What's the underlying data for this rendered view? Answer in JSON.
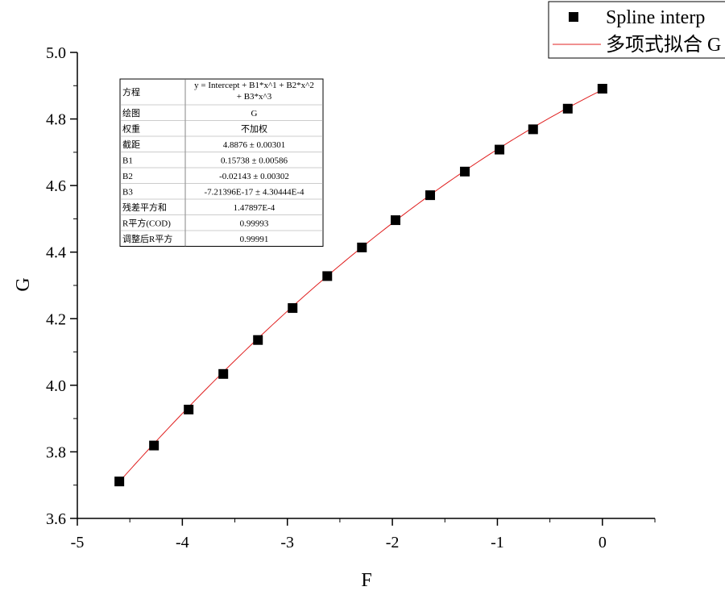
{
  "chart_data": {
    "type": "scatter",
    "xlabel": "F",
    "ylabel": "G",
    "xlim": [
      -5,
      0.5
    ],
    "ylim": [
      3.6,
      5.0
    ],
    "x_ticks": [
      "-5",
      "-4",
      "-3",
      "-2",
      "-1",
      "0"
    ],
    "y_ticks": [
      "3.6",
      "3.8",
      "4.0",
      "4.2",
      "4.4",
      "4.6",
      "4.8",
      "5.0"
    ],
    "grid": false,
    "legend_position": "top-right",
    "series": [
      {
        "name": "Spline interp",
        "kind": "scatter",
        "marker": "square",
        "color": "#000000",
        "x": [
          -4.6,
          -4.27,
          -3.94,
          -3.61,
          -3.28,
          -2.95,
          -2.62,
          -2.29,
          -1.97,
          -1.64,
          -1.31,
          -0.98,
          -0.66,
          -0.33,
          0.0
        ],
        "y": [
          3.711,
          3.819,
          3.927,
          4.034,
          4.136,
          4.232,
          4.328,
          4.414,
          4.496,
          4.571,
          4.642,
          4.708,
          4.769,
          4.831,
          4.891
        ]
      },
      {
        "name": "多项式拟合 G",
        "kind": "line",
        "color": "#e02020",
        "fit": {
          "intercept": 4.8876,
          "b1": 0.15738,
          "b2": -0.02143,
          "b3": 0
        }
      }
    ],
    "stats_table": [
      {
        "label": "方程",
        "value": "y = Intercept + B1*x^1 + B2*x^2",
        "value2": "+ B3*x^3"
      },
      {
        "label": "绘图",
        "value": "G"
      },
      {
        "label": "权重",
        "value": "不加权"
      },
      {
        "label": "截距",
        "value": "4.8876 ± 0.00301"
      },
      {
        "label": "B1",
        "value": "0.15738 ± 0.00586"
      },
      {
        "label": "B2",
        "value": "-0.02143 ± 0.00302"
      },
      {
        "label": "B3",
        "value": "-7.21396E-17 ± 4.30444E-4"
      },
      {
        "label": "残差平方和",
        "value": "1.47897E-4"
      },
      {
        "label": "R平方(COD)",
        "value": "0.99993"
      },
      {
        "label": "调整后R平方",
        "value": "0.99991"
      }
    ]
  }
}
